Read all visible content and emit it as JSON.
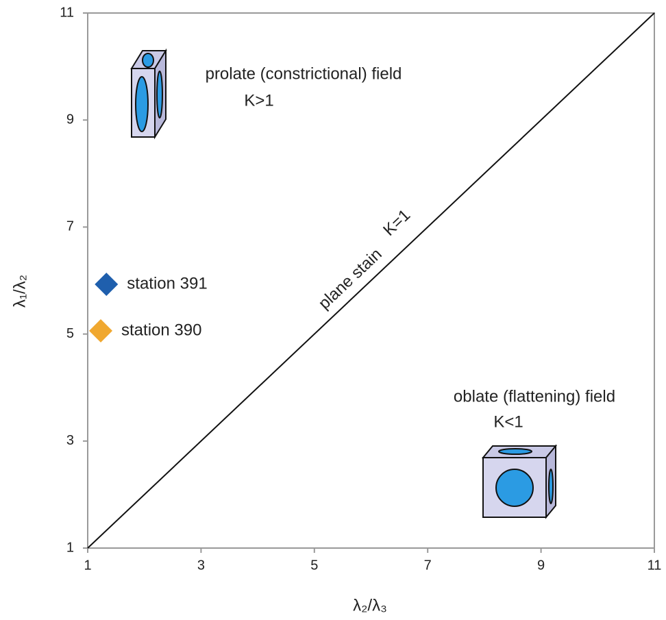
{
  "chart_data": {
    "type": "scatter",
    "x_label": "λ₂/λ₃",
    "y_label": "λ₁/λ₂",
    "xlim": [
      1,
      11
    ],
    "ylim": [
      1,
      11
    ],
    "xticks": [
      1,
      3,
      5,
      7,
      9,
      11
    ],
    "yticks": [
      1,
      3,
      5,
      7,
      9,
      11
    ],
    "series": [
      {
        "name": "station 391",
        "color": "#1f5fad",
        "x": [
          1.33
        ],
        "values": [
          5.93
        ]
      },
      {
        "name": "station 390",
        "color": "#f0a830",
        "x": [
          1.23
        ],
        "values": [
          5.06
        ]
      }
    ],
    "annotations": {
      "prolate": "prolate (constrictional) field",
      "prolate_k": "K>1",
      "plane": "plane stain",
      "plane_k": "K=1",
      "oblate": "oblate (flattening) field",
      "oblate_k": "K<1"
    }
  }
}
